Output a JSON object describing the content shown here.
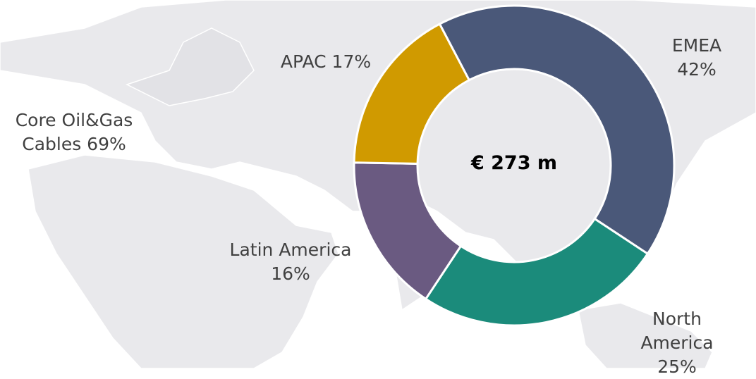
{
  "chart_data": {
    "type": "donut",
    "values": [
      42,
      25,
      16,
      17
    ],
    "value_labels": [
      "EMEA 42%",
      "North\nAmerica 25%",
      "Latin America\n16%",
      "APAC 17%"
    ],
    "colors": [
      "#4a5879",
      "#1b8b7b",
      "#6a5a81",
      "#d09a00"
    ],
    "center_label": "€ 273 m",
    "annotation": "Core Oil&Gas\nCables 69%"
  }
}
